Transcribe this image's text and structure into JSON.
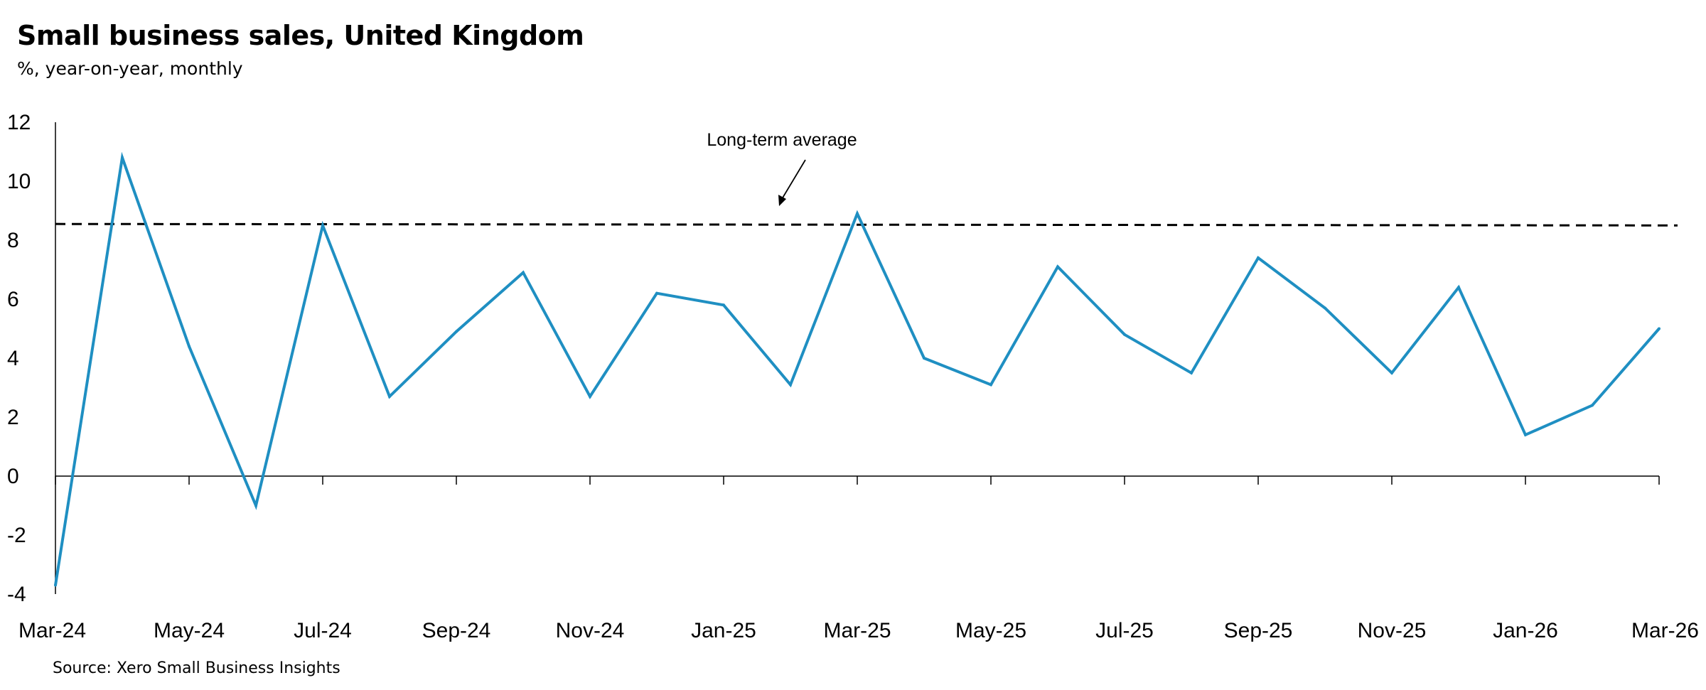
{
  "chart_data": {
    "type": "line",
    "title": "Small business sales, United Kingdom",
    "subtitle": "%, year-on-year, monthly",
    "source": "Source: Xero Small Business Insights",
    "x_labels": [
      "Mar-24",
      "May-24",
      "Jul-24",
      "Sep-24",
      "Nov-24",
      "Jan-25",
      "Mar-25",
      "May-25",
      "Jul-25",
      "Sep-25",
      "Nov-25",
      "Jan-26",
      "Mar-26"
    ],
    "x": [
      "Mar-24",
      "Apr-24",
      "May-24",
      "Jun-24",
      "Jul-24",
      "Aug-24",
      "Sep-24",
      "Oct-24",
      "Nov-24",
      "Dec-24",
      "Jan-25",
      "Feb-25",
      "Mar-25",
      "Apr-25",
      "May-25",
      "Jun-25",
      "Jul-25",
      "Aug-25",
      "Sep-25",
      "Oct-25",
      "Nov-25",
      "Dec-25",
      "Jan-26",
      "Feb-26",
      "Mar-26"
    ],
    "series": [
      {
        "color": "#1f8fc2",
        "values": [
          -3.7,
          10.8,
          4.4,
          -1.0,
          8.5,
          2.7,
          4.9,
          6.9,
          2.7,
          6.2,
          5.8,
          3.1,
          8.9,
          4.0,
          3.1,
          7.1,
          4.8,
          3.5,
          7.4,
          5.7,
          3.5,
          6.4,
          1.4,
          2.4,
          5.0
        ]
      }
    ],
    "reference_line": {
      "label": "Long-term average",
      "value_start": 8.55,
      "value_end": 8.5,
      "style": "dashed",
      "color": "#000000"
    },
    "yticks": [
      "12",
      "10",
      "8",
      "6",
      "4",
      "2",
      "0",
      "-2",
      "-4"
    ],
    "ylim": [
      -4,
      12
    ],
    "grid": false,
    "legend": "none"
  }
}
